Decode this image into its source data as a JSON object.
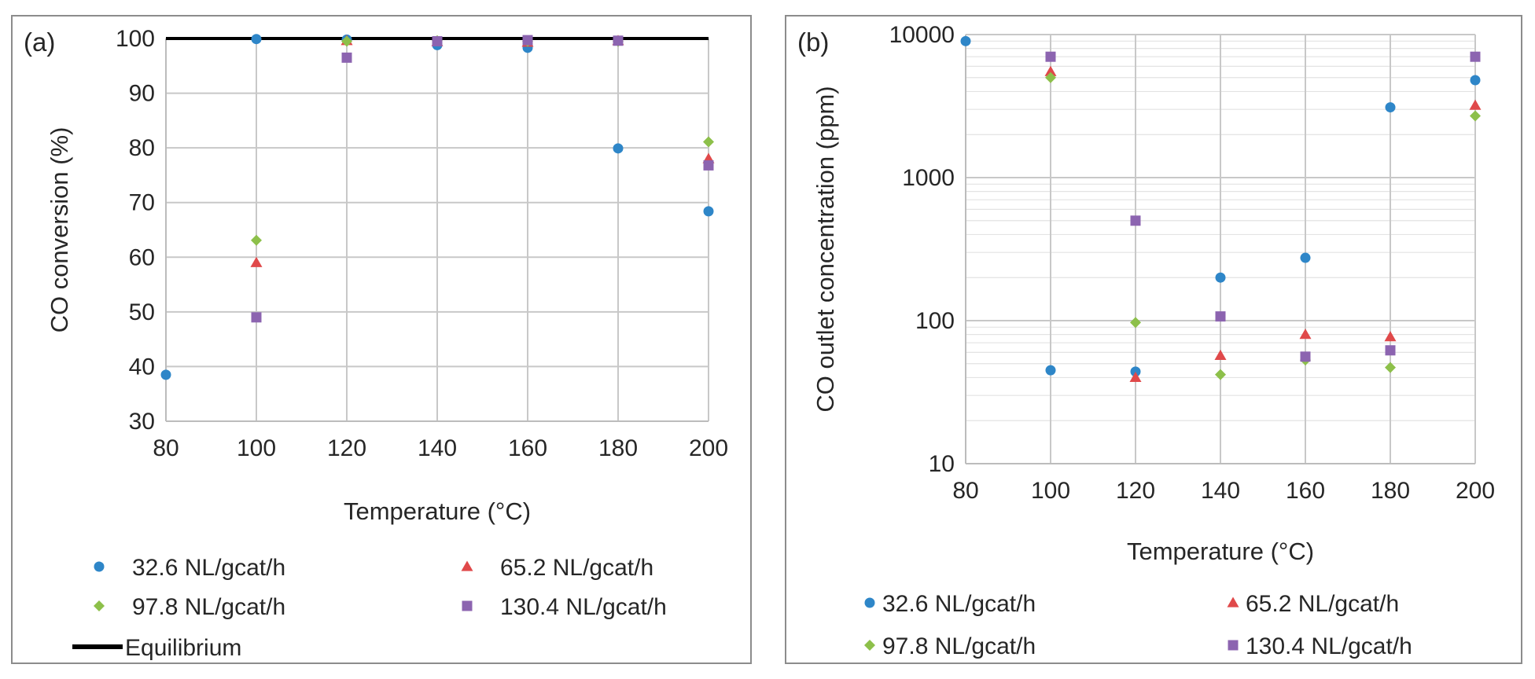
{
  "chart_data": [
    {
      "type": "scatter",
      "panel_label": "(a)",
      "xlabel": "Temperature (°C)",
      "ylabel": "CO conversion (%)",
      "xlim": [
        80,
        200
      ],
      "ylim": [
        30,
        100
      ],
      "xticks": [
        80,
        100,
        120,
        140,
        160,
        180,
        200
      ],
      "yticks": [
        30,
        40,
        50,
        60,
        70,
        80,
        90,
        100
      ],
      "grid": true,
      "legend_position": "bottom",
      "series": [
        {
          "name": "32.6 NL/gcat/h",
          "marker": "circle",
          "color": "#2e86c8",
          "x": [
            80,
            100,
            120,
            140,
            160,
            180,
            200
          ],
          "y": [
            38.5,
            99.9,
            99.8,
            98.8,
            98.3,
            79.9,
            68.4
          ]
        },
        {
          "name": "65.2 NL/gcat/h",
          "marker": "triangle",
          "color": "#e0494a",
          "x": [
            100,
            120,
            140,
            160,
            180,
            200
          ],
          "y": [
            59.0,
            99.6,
            99.4,
            99.3,
            99.6,
            78.0
          ]
        },
        {
          "name": "97.8 NL/gcat/h",
          "marker": "diamond",
          "color": "#8dc04a",
          "x": [
            100,
            120,
            140,
            160,
            180,
            200
          ],
          "y": [
            63.1,
            99.5,
            99.6,
            99.5,
            99.5,
            81.1
          ]
        },
        {
          "name": "130.4 NL/gcat/h",
          "marker": "square",
          "color": "#8c64b0",
          "x": [
            100,
            120,
            140,
            160,
            180,
            200
          ],
          "y": [
            49.0,
            96.5,
            99.5,
            99.7,
            99.6,
            76.8
          ]
        }
      ],
      "lines": [
        {
          "name": "Equilibrium",
          "color": "#000000",
          "x": [
            80,
            200
          ],
          "y": [
            100,
            100
          ]
        }
      ]
    },
    {
      "type": "scatter",
      "panel_label": "(b)",
      "xlabel": "Temperature (°C)",
      "ylabel": "CO outlet concentration (ppm)",
      "xlim": [
        80,
        200
      ],
      "ylim": [
        10,
        10000
      ],
      "yscale": "log",
      "xticks": [
        80,
        100,
        120,
        140,
        160,
        180,
        200
      ],
      "yticks": [
        10,
        100,
        1000,
        10000
      ],
      "grid": true,
      "legend_position": "bottom",
      "series": [
        {
          "name": "32.6 NL/gcat/h",
          "marker": "circle",
          "color": "#2e86c8",
          "x": [
            80,
            100,
            120,
            140,
            160,
            180,
            200
          ],
          "y": [
            9000,
            45,
            44,
            200,
            275,
            3100,
            4800
          ]
        },
        {
          "name": "65.2 NL/gcat/h",
          "marker": "triangle",
          "color": "#e0494a",
          "x": [
            100,
            120,
            140,
            160,
            180,
            200
          ],
          "y": [
            5500,
            40,
            57,
            80,
            77,
            3200
          ]
        },
        {
          "name": "97.8 NL/gcat/h",
          "marker": "diamond",
          "color": "#8dc04a",
          "x": [
            100,
            120,
            140,
            160,
            180,
            200
          ],
          "y": [
            5000,
            97,
            42,
            53,
            47,
            2700
          ]
        },
        {
          "name": "130.4 NL/gcat/h",
          "marker": "square",
          "color": "#8c64b0",
          "x": [
            100,
            120,
            140,
            160,
            180,
            200
          ],
          "y": [
            7000,
            500,
            107,
            56,
            62,
            7000
          ]
        }
      ]
    }
  ]
}
